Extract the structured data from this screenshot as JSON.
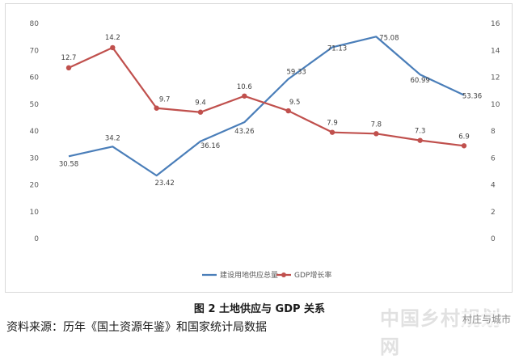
{
  "chart_data": {
    "type": "line",
    "categories": [
      "",
      "",
      "",
      "",
      "",
      "",
      "",
      "",
      "",
      ""
    ],
    "series": [
      {
        "name": "建设用地供应总量",
        "axis": "left",
        "color": "#4a7eb9",
        "values": [
          30.58,
          34.2,
          23.42,
          36.16,
          43.26,
          59.33,
          71.13,
          75.08,
          60.99,
          53.36
        ],
        "labels": [
          "30.58",
          "34.2",
          "23.42",
          "36.16",
          "43.26",
          "59.33",
          "71.13",
          "75.08",
          "60.99",
          "53.36"
        ]
      },
      {
        "name": "GDP增长率",
        "axis": "right",
        "color": "#c0504d",
        "values": [
          12.7,
          14.2,
          9.7,
          9.4,
          10.6,
          9.5,
          7.9,
          7.8,
          7.3,
          6.9
        ],
        "labels": [
          "12.7",
          "14.2",
          "9.7",
          "9.4",
          "10.6",
          "9.5",
          "7.9",
          "7.8",
          "7.3",
          "6.9"
        ]
      }
    ],
    "left_axis": {
      "ylim": [
        0,
        80
      ],
      "ticks": [
        "0",
        "10",
        "20",
        "30",
        "40",
        "50",
        "60",
        "70",
        "80"
      ]
    },
    "right_axis": {
      "ylim": [
        0,
        16
      ],
      "ticks": [
        "0",
        "2",
        "4",
        "6",
        "8",
        "10",
        "12",
        "14",
        "16"
      ]
    },
    "grid": false,
    "legend_position": "bottom"
  },
  "caption": "图 2 土地供应与 GDP 关系",
  "source": "资料来源：历年《国土资源年鉴》和国家统计局数据",
  "watermark": {
    "main": "中国乡村规划网",
    "sub": "村庄与城市"
  }
}
